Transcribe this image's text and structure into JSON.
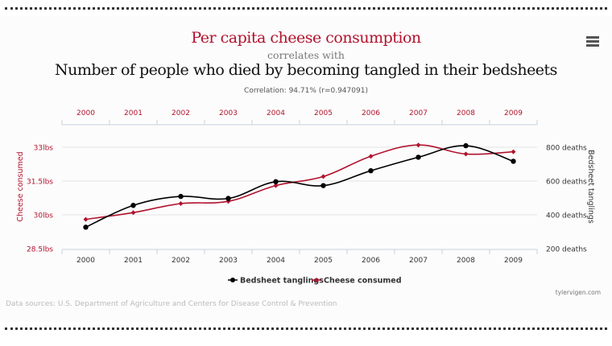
{
  "header": {
    "title_primary": "Per capita cheese consumption",
    "connector": "correlates with",
    "title_secondary": "Number of people who died by becoming tangled in their bedsheets",
    "correlation": "Correlation: 94.71% (r=0.947091)"
  },
  "menu": {
    "icon": "hamburger-menu-icon"
  },
  "footer": {
    "sources": "Data sources: U.S. Department of Agriculture and Centers for Disease Control & Prevention",
    "credit": "tylervigen.com"
  },
  "colors": {
    "cheese": "#b1132e",
    "bedsheet": "#000000",
    "grid": "#e3e3e3",
    "axis": "#c8d2e0"
  },
  "chart_data": {
    "type": "line",
    "title": "Per capita cheese consumption correlates with Number of people who died by becoming tangled in their bedsheets",
    "x": [
      "2000",
      "2001",
      "2002",
      "2003",
      "2004",
      "2005",
      "2006",
      "2007",
      "2008",
      "2009"
    ],
    "series": [
      {
        "name": "Bedsheet tanglings",
        "axis": "right",
        "color": "#000000",
        "marker": "circle",
        "values": [
          327,
          456,
          509,
          497,
          596,
          573,
          661,
          741,
          809,
          717
        ]
      },
      {
        "name": "Cheese consumed",
        "axis": "left",
        "color": "#b1132e",
        "marker": "diamond",
        "values": [
          29.8,
          30.1,
          30.5,
          30.6,
          31.3,
          31.7,
          32.6,
          33.1,
          32.7,
          32.8
        ]
      }
    ],
    "left_axis": {
      "label": "Cheese consumed",
      "ticks": [
        28.5,
        30,
        31.5,
        33
      ],
      "tick_labels": [
        "28.5lbs",
        "30lbs",
        "31.5lbs",
        "33lbs"
      ],
      "range": [
        28.5,
        33
      ]
    },
    "right_axis": {
      "label": "Bedsheet tanglings",
      "ticks": [
        200,
        400,
        600,
        800
      ],
      "tick_labels": [
        "200 deaths",
        "400 deaths",
        "600 deaths",
        "800 deaths"
      ],
      "range": [
        200,
        800
      ]
    },
    "top_axis_labels": [
      "2000",
      "2001",
      "2002",
      "2003",
      "2004",
      "2005",
      "2006",
      "2007",
      "2008",
      "2009"
    ],
    "bottom_axis_labels": [
      "2000",
      "2001",
      "2002",
      "2003",
      "2004",
      "2005",
      "2006",
      "2007",
      "2008",
      "2009"
    ],
    "legend": {
      "position": "bottom-center",
      "items": [
        "Bedsheet tanglings",
        "Cheese consumed"
      ]
    },
    "grid": true
  }
}
